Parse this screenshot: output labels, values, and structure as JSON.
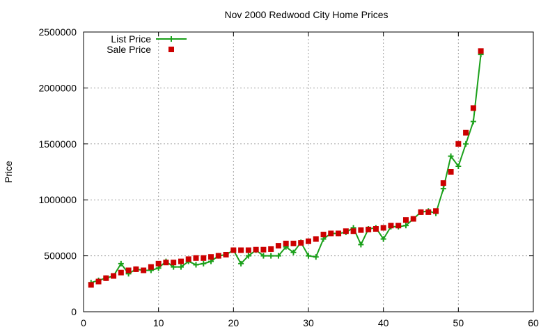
{
  "chart_data": {
    "type": "line",
    "title": "Nov 2000 Redwood City Home Prices",
    "xlabel": "",
    "ylabel": "Price",
    "xlim": [
      0,
      60
    ],
    "ylim": [
      0,
      2500000
    ],
    "x_ticks": [
      0,
      10,
      20,
      30,
      40,
      50,
      60
    ],
    "y_ticks": [
      0,
      500000,
      1000000,
      1500000,
      2000000,
      2500000
    ],
    "grid": true,
    "legend_position": "top-left",
    "series": [
      {
        "name": "List Price",
        "style": "linespoints",
        "color": "#1aa01a",
        "x": [
          1,
          2,
          3,
          4,
          5,
          6,
          7,
          8,
          9,
          10,
          11,
          12,
          13,
          14,
          15,
          16,
          17,
          18,
          19,
          20,
          21,
          22,
          23,
          24,
          25,
          26,
          27,
          28,
          29,
          30,
          31,
          32,
          33,
          34,
          35,
          36,
          37,
          38,
          39,
          40,
          41,
          42,
          43,
          44,
          45,
          46,
          47,
          48,
          49,
          50,
          51,
          52,
          53
        ],
        "values": [
          260000,
          280000,
          300000,
          320000,
          430000,
          340000,
          380000,
          370000,
          370000,
          390000,
          450000,
          400000,
          400000,
          450000,
          420000,
          430000,
          450000,
          500000,
          510000,
          550000,
          430000,
          500000,
          550000,
          500000,
          500000,
          500000,
          580000,
          530000,
          620000,
          500000,
          490000,
          650000,
          700000,
          700000,
          710000,
          750000,
          600000,
          740000,
          750000,
          650000,
          760000,
          760000,
          770000,
          830000,
          890000,
          900000,
          880000,
          1100000,
          1390000,
          1300000,
          1500000,
          1700000,
          2300000
        ]
      },
      {
        "name": "Sale Price",
        "style": "points",
        "color": "#cc0000",
        "x": [
          1,
          2,
          3,
          4,
          5,
          6,
          7,
          8,
          9,
          10,
          11,
          12,
          13,
          14,
          15,
          16,
          17,
          18,
          19,
          20,
          21,
          22,
          23,
          24,
          25,
          26,
          27,
          28,
          29,
          30,
          31,
          32,
          33,
          34,
          35,
          36,
          37,
          38,
          39,
          40,
          41,
          42,
          43,
          44,
          45,
          46,
          47,
          48,
          49,
          50,
          51,
          52,
          53
        ],
        "values": [
          240000,
          270000,
          300000,
          320000,
          350000,
          370000,
          380000,
          370000,
          400000,
          430000,
          440000,
          440000,
          450000,
          470000,
          480000,
          480000,
          490000,
          500000,
          510000,
          550000,
          550000,
          550000,
          555000,
          555000,
          560000,
          590000,
          610000,
          610000,
          615000,
          630000,
          650000,
          690000,
          700000,
          700000,
          720000,
          720000,
          730000,
          735000,
          740000,
          750000,
          770000,
          770000,
          820000,
          830000,
          890000,
          890000,
          900000,
          1150000,
          1250000,
          1500000,
          1600000,
          1820000,
          2330000
        ]
      }
    ]
  }
}
